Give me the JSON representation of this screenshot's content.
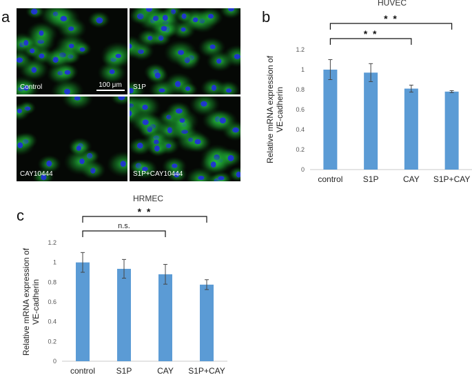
{
  "panels": {
    "a": "a",
    "b": "b",
    "c": "c"
  },
  "micrographs": {
    "images": [
      {
        "label": "Control"
      },
      {
        "label": "S1P"
      },
      {
        "label": "CAY10444"
      },
      {
        "label": "S1P+CAY10444"
      }
    ],
    "scale_bar": "100 μm"
  },
  "colors": {
    "bar": "#5b9bd5",
    "nuclei": "#1f2fd8",
    "membrane": "#33d13a"
  },
  "chart_data": [
    {
      "id": "b",
      "type": "bar",
      "title": "HUVEC",
      "ylabel_line1": "Relative mRNA expression of",
      "ylabel_line2": "VE-cadherin",
      "categories": [
        "control",
        "S1P",
        "CAY",
        "S1P+CAY"
      ],
      "values": [
        1.0,
        0.97,
        0.81,
        0.78
      ],
      "errors": [
        0.1,
        0.09,
        0.035,
        0.01
      ],
      "ylim": [
        0,
        1.2
      ],
      "yticks": [
        "0",
        "0.2",
        "0.4",
        "0.6",
        "0.8",
        "1",
        "1.2"
      ],
      "grid": false,
      "significance": [
        {
          "from": 0,
          "to": 2,
          "label": "* *"
        },
        {
          "from": 0,
          "to": 3,
          "label": "* *"
        }
      ]
    },
    {
      "id": "c",
      "type": "bar",
      "title": "HRMEC",
      "ylabel_line1": "Relative mRNA expression of",
      "ylabel_line2": "VE-cadherin",
      "categories": [
        "control",
        "S1P",
        "CAY",
        "S1P+CAY"
      ],
      "values": [
        1.0,
        0.935,
        0.88,
        0.775
      ],
      "errors": [
        0.1,
        0.095,
        0.1,
        0.05
      ],
      "ylim": [
        0,
        1.2
      ],
      "yticks": [
        "0",
        "0.2",
        "0.4",
        "0.6",
        "0.8",
        "1",
        "1.2"
      ],
      "grid": false,
      "significance": [
        {
          "from": 0,
          "to": 2,
          "label": "n.s."
        },
        {
          "from": 0,
          "to": 3,
          "label": "* *"
        }
      ]
    }
  ]
}
